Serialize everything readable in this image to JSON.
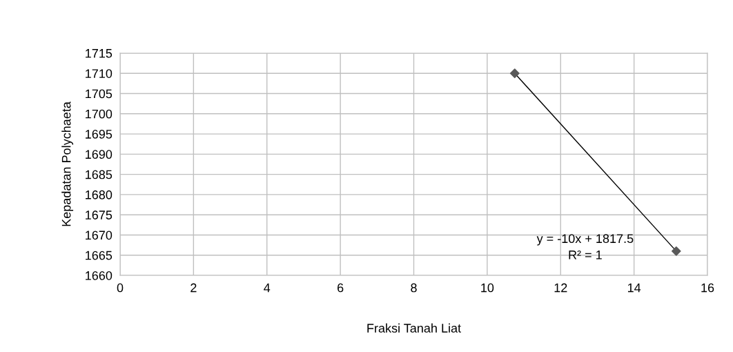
{
  "chart_data": {
    "type": "scatter",
    "xlabel": "Fraksi Tanah Liat",
    "ylabel": "Kepadatan Polychaeta",
    "series": [
      {
        "values": [
          1710,
          1666
        ],
        "color": "#595959",
        "marker": "diamond"
      },
      {
        "type": "line",
        "values": [
          1710,
          1666
        ],
        "color": "#000000",
        "marker": "none",
        "line_style": "solid"
      }
    ],
    "annotations": [
      "y = -10x + 1817.5",
      "R² = 1"
    ],
    "x": [
      10.75,
      15.15
    ],
    "xlim": [
      0,
      16
    ],
    "xticks": [
      0,
      2,
      4,
      6,
      8,
      10,
      12,
      14,
      16
    ],
    "ylim": [
      1660,
      1715
    ],
    "yticks": [
      1660,
      1665,
      1670,
      1675,
      1680,
      1685,
      1690,
      1695,
      1700,
      1705,
      1710,
      1715
    ],
    "grid": true,
    "legend": false
  }
}
